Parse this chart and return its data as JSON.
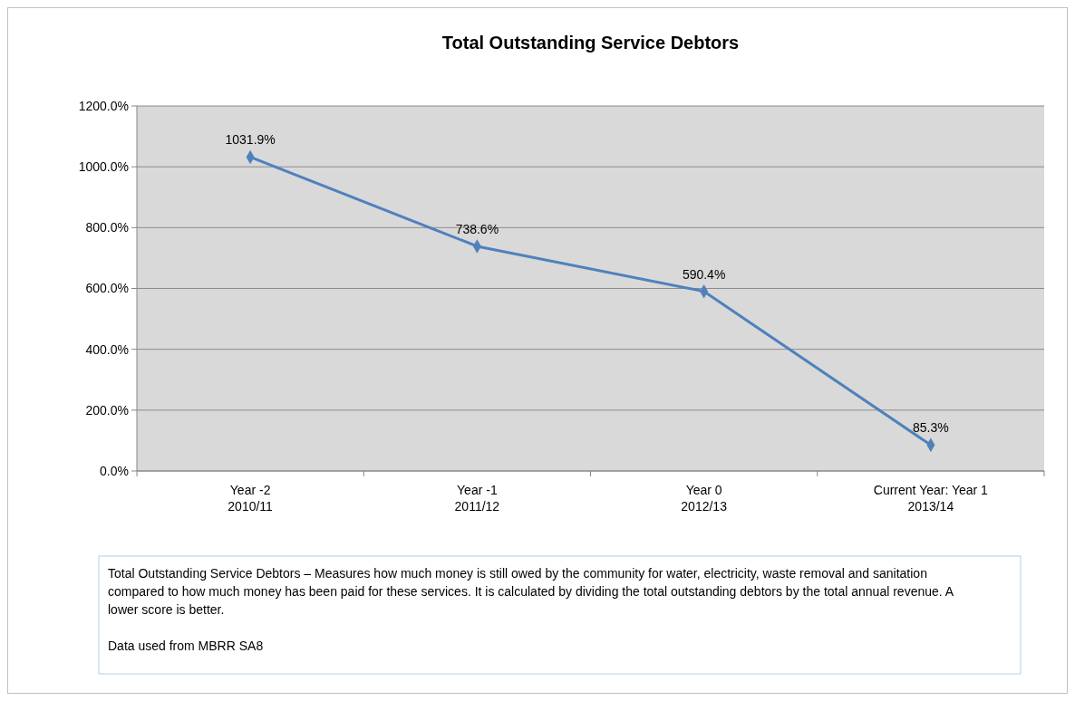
{
  "chart_data": {
    "type": "line",
    "title": "Total Outstanding Service Debtors",
    "categories": [
      "Year -2\n2010/11",
      "Year -1\n2011/12",
      "Year 0\n2012/13",
      "Current Year: Year 1\n2013/14"
    ],
    "series": [
      {
        "color": "#4f81bd",
        "values": [
          1031.9,
          738.6,
          590.4,
          85.3
        ],
        "value_labels": [
          "1031.9%",
          "738.6%",
          "590.4%",
          "85.3%"
        ]
      }
    ],
    "ylim": [
      0,
      1200
    ],
    "yticks": [
      {
        "value": 0,
        "label": "0.0%"
      },
      {
        "value": 200,
        "label": "200.0%"
      },
      {
        "value": 400,
        "label": "400.0%"
      },
      {
        "value": 600,
        "label": "600.0%"
      },
      {
        "value": 800,
        "label": "800.0%"
      },
      {
        "value": 1000,
        "label": "1000.0%"
      },
      {
        "value": 1200,
        "label": "1200.0%"
      }
    ],
    "grid": "y",
    "marker": "diamond",
    "line_style": "solid",
    "annotations": [
      "Total Outstanding Service Debtors – Measures how much money is still owed by the community for water, electricity, waste removal and sanitation compared to how much money has been paid for these services. It is calculated by dividing the total outstanding debtors by the total annual revenue. A lower score is better.",
      "Data used from MBRR SA8"
    ]
  }
}
